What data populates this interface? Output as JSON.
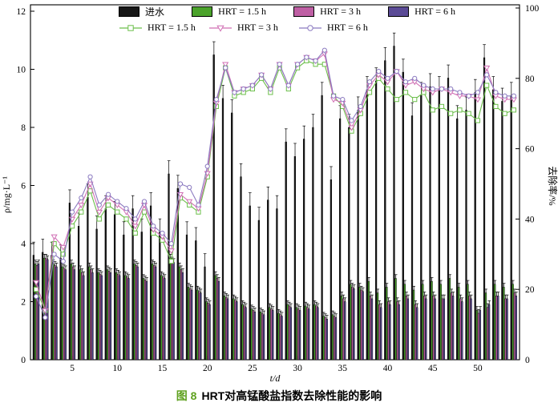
{
  "figure": {
    "caption_prefix": "图 8",
    "caption_text": "HRT对高锰酸盐指数去除性能的影响",
    "caption_prefix_color": "#5fa11f"
  },
  "axes": {
    "left": {
      "label": "ρ/mg·L⁻¹",
      "ticks": [
        0,
        2,
        4,
        6,
        8,
        10,
        12
      ],
      "range": [
        0,
        12
      ]
    },
    "right": {
      "label": "去除率/%",
      "ticks": [
        0,
        20,
        40,
        60,
        80,
        100
      ],
      "range": [
        0,
        100
      ]
    },
    "bottom": {
      "label": "t/d",
      "ticks": [
        5,
        10,
        15,
        20,
        25,
        30,
        35,
        40,
        45,
        50
      ],
      "range": [
        1,
        54
      ]
    }
  },
  "legend": {
    "bars": [
      {
        "label": "进水",
        "color": "#161616"
      },
      {
        "label": "HRT = 1.5 h",
        "color": "#4ba32b"
      },
      {
        "label": "HRT = 3 h",
        "color": "#bf5fa4"
      },
      {
        "label": "HRT = 6 h",
        "color": "#5b4b96"
      }
    ],
    "lines": [
      {
        "label": "HRT = 1.5 h",
        "color": "#6cbf4b",
        "marker": "square"
      },
      {
        "label": "HRT = 3 h",
        "color": "#d06fb4",
        "marker": "triangle-down"
      },
      {
        "label": "HRT = 6 h",
        "color": "#8b7ac0",
        "marker": "circle"
      }
    ]
  },
  "chart_data": {
    "type": "bar",
    "note": "dual-axis combo: grouped bars on left axis (concentration), marker lines on right axis (removal %); values estimated from pixels",
    "xlabel": "t/d",
    "ylabel_left": "ρ/mg·L⁻¹",
    "ylabel_right": "去除率/%",
    "ylim_left": [
      0,
      12
    ],
    "ylim_right": [
      0,
      100
    ],
    "x": [
      1,
      2,
      3,
      4,
      5,
      6,
      7,
      8,
      9,
      10,
      11,
      12,
      13,
      14,
      15,
      16,
      17,
      18,
      19,
      20,
      21,
      22,
      23,
      24,
      25,
      26,
      27,
      28,
      29,
      30,
      31,
      32,
      33,
      34,
      35,
      36,
      37,
      38,
      39,
      40,
      41,
      42,
      43,
      44,
      45,
      46,
      47,
      48,
      49,
      50,
      51,
      52,
      53,
      54
    ],
    "bar_series": [
      {
        "name": "进水",
        "axis": "left",
        "color": "#161616",
        "values": [
          3.6,
          3.7,
          3.6,
          3.5,
          5.4,
          4.6,
          5.6,
          4.5,
          5.2,
          5.0,
          4.3,
          5.2,
          4.4,
          5.3,
          4.4,
          6.4,
          5.9,
          4.3,
          4.1,
          3.2,
          10.5,
          9.0,
          8.5,
          6.3,
          5.3,
          4.8,
          5.5,
          5.2,
          7.5,
          7.0,
          7.6,
          8.0,
          9.1,
          6.2,
          8.3,
          8.0,
          8.6,
          9.3,
          9.6,
          10.3,
          10.8,
          9.9,
          8.4,
          9.1,
          9.4,
          9.3,
          9.7,
          8.3,
          8.6,
          9.2,
          10.4,
          9.3,
          8.9,
          9.1
        ]
      },
      {
        "name": "HRT = 1.5 h",
        "axis": "left",
        "color": "#4ba32b",
        "values": [
          3.3,
          3.5,
          3.3,
          3.2,
          3.3,
          3.1,
          3.2,
          3.0,
          3.1,
          3.0,
          2.9,
          3.3,
          2.8,
          3.3,
          2.9,
          3.5,
          3.2,
          2.5,
          2.4,
          2.0,
          2.9,
          2.2,
          2.1,
          1.9,
          1.75,
          1.65,
          1.8,
          1.6,
          1.9,
          1.8,
          1.85,
          1.9,
          1.5,
          1.55,
          2.2,
          2.6,
          2.5,
          2.7,
          2.3,
          2.5,
          2.8,
          2.6,
          2.4,
          2.6,
          2.7,
          2.6,
          2.8,
          2.5,
          2.6,
          1.7,
          2.3,
          2.6,
          2.5,
          2.6
        ]
      },
      {
        "name": "HRT = 3 h",
        "axis": "left",
        "color": "#bf5fa4",
        "values": [
          3.25,
          3.5,
          3.25,
          3.15,
          3.2,
          3.0,
          3.1,
          2.95,
          3.05,
          2.95,
          2.85,
          3.25,
          2.75,
          3.25,
          2.85,
          3.4,
          3.1,
          2.45,
          2.35,
          1.95,
          2.8,
          2.15,
          2.05,
          1.85,
          1.7,
          1.6,
          1.75,
          1.55,
          1.85,
          1.75,
          1.8,
          1.85,
          1.45,
          1.5,
          2.1,
          2.5,
          2.4,
          2.2,
          1.9,
          2.0,
          2.0,
          2.2,
          1.9,
          2.2,
          2.2,
          2.1,
          2.3,
          2.1,
          2.2,
          1.6,
          1.8,
          2.2,
          2.1,
          2.3
        ]
      },
      {
        "name": "HRT = 6 h",
        "axis": "left",
        "color": "#5b4b96",
        "values": [
          3.3,
          3.45,
          3.2,
          3.1,
          3.1,
          2.9,
          3.0,
          2.9,
          3.0,
          2.9,
          2.8,
          3.2,
          2.7,
          3.2,
          2.8,
          3.35,
          3.0,
          2.4,
          2.3,
          1.9,
          2.7,
          2.1,
          2.0,
          1.8,
          1.65,
          1.55,
          1.7,
          1.5,
          1.8,
          1.7,
          1.75,
          1.8,
          1.4,
          1.45,
          2.0,
          2.45,
          2.35,
          2.1,
          1.8,
          1.9,
          1.9,
          2.1,
          1.8,
          2.1,
          2.1,
          2.1,
          2.2,
          2.0,
          2.1,
          1.7,
          1.9,
          2.2,
          2.1,
          2.2
        ]
      }
    ],
    "line_series": [
      {
        "name": "HRT = 1.5 h",
        "axis": "right",
        "color": "#6cbf4b",
        "marker": "square",
        "values": [
          20,
          14,
          33,
          30,
          38,
          42,
          48,
          40,
          44,
          42,
          40,
          36,
          42,
          36,
          34,
          28,
          46,
          44,
          42,
          52,
          72,
          83,
          75,
          76,
          77,
          80,
          76,
          83,
          77,
          83,
          85,
          84,
          84,
          75,
          72,
          65,
          70,
          76,
          80,
          77,
          74,
          76,
          74,
          76,
          71,
          72,
          70,
          71,
          70,
          68,
          78,
          72,
          70,
          71
        ]
      },
      {
        "name": "HRT = 3 h",
        "axis": "right",
        "color": "#d06fb4",
        "marker": "triangle-down",
        "values": [
          22,
          14,
          35,
          32,
          40,
          44,
          50,
          42,
          46,
          44,
          42,
          38,
          44,
          37,
          35,
          31,
          47,
          45,
          43,
          53,
          73,
          84,
          76,
          77,
          78,
          81,
          77,
          84,
          78,
          84,
          86,
          85,
          87,
          74,
          73,
          66,
          71,
          78,
          81,
          79,
          82,
          78,
          79,
          77,
          76,
          77,
          76,
          75,
          75,
          74,
          83,
          75,
          74,
          74
        ]
      },
      {
        "name": "HRT = 6 h",
        "axis": "right",
        "color": "#8b7ac0",
        "marker": "circle",
        "values": [
          18,
          12,
          30,
          28,
          42,
          46,
          52,
          44,
          47,
          45,
          43,
          40,
          45,
          38,
          36,
          33,
          50,
          49,
          44,
          55,
          74,
          83,
          76,
          77,
          78,
          81,
          77,
          84,
          78,
          84,
          86,
          85,
          88,
          75,
          74,
          68,
          72,
          79,
          82,
          80,
          82,
          79,
          80,
          78,
          77,
          77,
          77,
          76,
          75,
          76,
          81,
          76,
          75,
          75
        ]
      }
    ],
    "error_bars": {
      "influent_mg_L": 0.45,
      "effluent_mg_L": 0.13
    }
  }
}
